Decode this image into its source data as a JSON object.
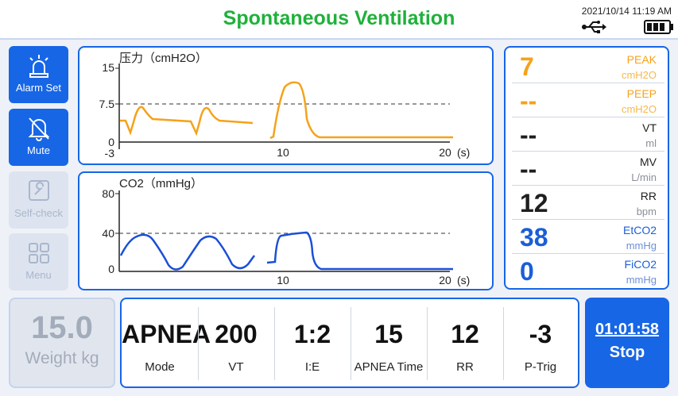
{
  "header": {
    "title": "Spontaneous Ventilation",
    "datetime": "2021/10/14 11:19 AM"
  },
  "sidebar": [
    {
      "label": "Alarm Set",
      "icon": "alarm-icon",
      "state": "active"
    },
    {
      "label": "Mute",
      "icon": "mute-bell-icon",
      "state": "active"
    },
    {
      "label": "Self-check",
      "icon": "self-check-icon",
      "state": "disabled"
    },
    {
      "label": "Menu",
      "icon": "menu-grid-icon",
      "state": "disabled"
    }
  ],
  "pressure_chart": {
    "title": "压力（cmH2O）",
    "y_ticks": [
      "15",
      "7.5",
      "0",
      "-3"
    ],
    "x_ticks": [
      "10",
      "20"
    ],
    "x_unit": "(s)",
    "color": "#f5a21b"
  },
  "co2_chart": {
    "title": "CO2（mmHg）",
    "y_ticks": [
      "80",
      "40",
      "0"
    ],
    "x_ticks": [
      "10",
      "20"
    ],
    "x_unit": "(s)",
    "color": "#1a4fd6"
  },
  "params": [
    {
      "value": "7",
      "name": "PEAK",
      "unit": "cmH2O",
      "color": "#f5a21b"
    },
    {
      "value": "--",
      "name": "PEEP",
      "unit": "cmH2O",
      "color": "#f5a21b"
    },
    {
      "value": "--",
      "name": "VT",
      "unit": "ml",
      "color": "#1f1f1f"
    },
    {
      "value": "--",
      "name": "MV",
      "unit": "L/min",
      "color": "#1f1f1f"
    },
    {
      "value": "12",
      "name": "RR",
      "unit": "bpm",
      "color": "#1f1f1f"
    },
    {
      "value": "38",
      "name": "EtCO2",
      "unit": "mmHg",
      "color": "#1a5fd6"
    },
    {
      "value": "0",
      "name": "FiCO2",
      "unit": "mmHg",
      "color": "#1a5fd6"
    }
  ],
  "weight": {
    "value": "15.0",
    "label": "Weight kg"
  },
  "vent_settings": [
    {
      "value": "APNEA",
      "label": "Mode"
    },
    {
      "value": "200",
      "label": "VT"
    },
    {
      "value": "1:2",
      "label": "I:E"
    },
    {
      "value": "15",
      "label": "APNEA Time"
    },
    {
      "value": "12",
      "label": "RR"
    },
    {
      "value": "-3",
      "label": "P-Trig"
    }
  ],
  "stop_button": {
    "time": "01:01:58",
    "label": "Stop"
  }
}
